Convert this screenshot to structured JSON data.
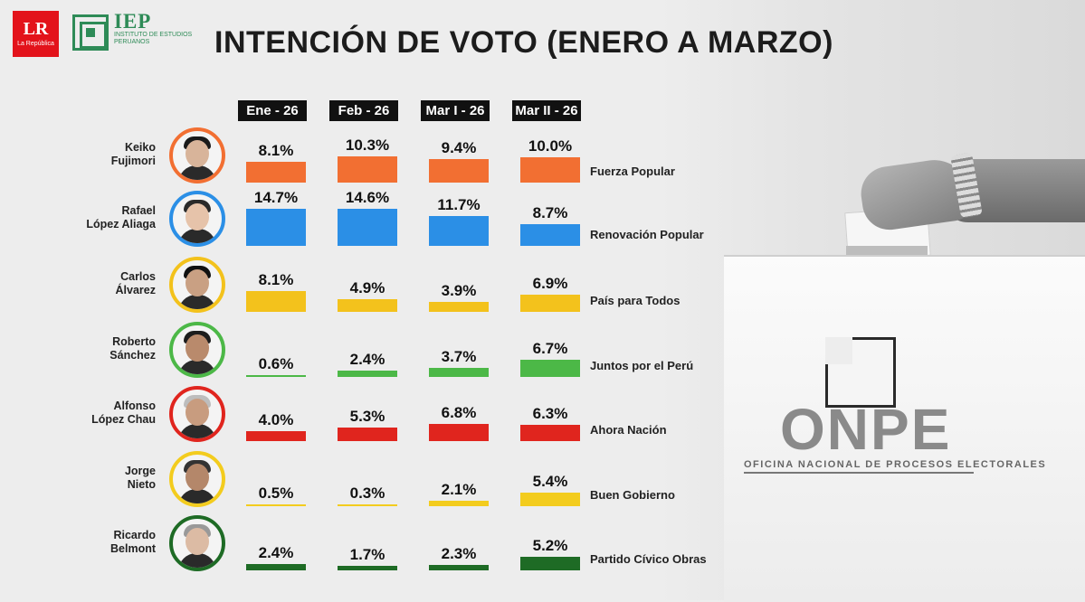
{
  "header": {
    "title": "INTENCIÓN DE VOTO (ENERO A MARZO)",
    "logo_lr": "LR",
    "logo_lr_sub": "La República",
    "logo_iep": "IEP",
    "logo_iep_sub": "INSTITUTO DE ESTUDIOS PERUANOS"
  },
  "background": {
    "onpe_logo": "ONPE",
    "onpe_subtitle": "OFICINA NACIONAL DE PROCESOS ELECTORALES"
  },
  "chart_data": {
    "type": "bar",
    "categories": [
      "Ene - 26",
      "Feb - 26",
      "Mar I - 26",
      "Mar II - 26"
    ],
    "unit": "%",
    "series": [
      {
        "candidate_line1": "Keiko",
        "candidate_line2": "Fujimori",
        "party": "Fuerza Popular",
        "color": "#f26f32",
        "values": [
          8.1,
          10.3,
          9.4,
          10.0
        ],
        "labels": [
          "8.1%",
          "10.3%",
          "9.4%",
          "10.0%"
        ]
      },
      {
        "candidate_line1": "Rafael",
        "candidate_line2": "López Aliaga",
        "party": "Renovación Popular",
        "color": "#2b8fe6",
        "values": [
          14.7,
          14.6,
          11.7,
          8.7
        ],
        "labels": [
          "14.7%",
          "14.6%",
          "11.7%",
          "8.7%"
        ]
      },
      {
        "candidate_line1": "Carlos",
        "candidate_line2": "Álvarez",
        "party": "País para Todos",
        "color": "#f3c21c",
        "values": [
          8.1,
          4.9,
          3.9,
          6.9
        ],
        "labels": [
          "8.1%",
          "4.9%",
          "3.9%",
          "6.9%"
        ]
      },
      {
        "candidate_line1": "Roberto",
        "candidate_line2": "Sánchez",
        "party": "Juntos por el Perú",
        "color": "#4cb847",
        "values": [
          0.6,
          2.4,
          3.7,
          6.7
        ],
        "labels": [
          "0.6%",
          "2.4%",
          "3.7%",
          "6.7%"
        ]
      },
      {
        "candidate_line1": "Alfonso",
        "candidate_line2": "López Chau",
        "party": "Ahora Nación",
        "color": "#e0251e",
        "values": [
          4.0,
          5.3,
          6.8,
          6.3
        ],
        "labels": [
          "4.0%",
          "5.3%",
          "6.8%",
          "6.3%"
        ]
      },
      {
        "candidate_line1": "Jorge",
        "candidate_line2": "Nieto",
        "party": "Buen Gobierno",
        "color": "#f3cc1e",
        "values": [
          0.5,
          0.3,
          2.1,
          5.4
        ],
        "labels": [
          "0.5%",
          "0.3%",
          "2.1%",
          "5.4%"
        ]
      },
      {
        "candidate_line1": "Ricardo",
        "candidate_line2": "Belmont",
        "party": "Partido Cívico Obras",
        "color": "#1e6b25",
        "values": [
          2.4,
          1.7,
          2.3,
          5.2
        ],
        "labels": [
          "2.4%",
          "1.7%",
          "2.3%",
          "5.2%"
        ]
      }
    ]
  }
}
